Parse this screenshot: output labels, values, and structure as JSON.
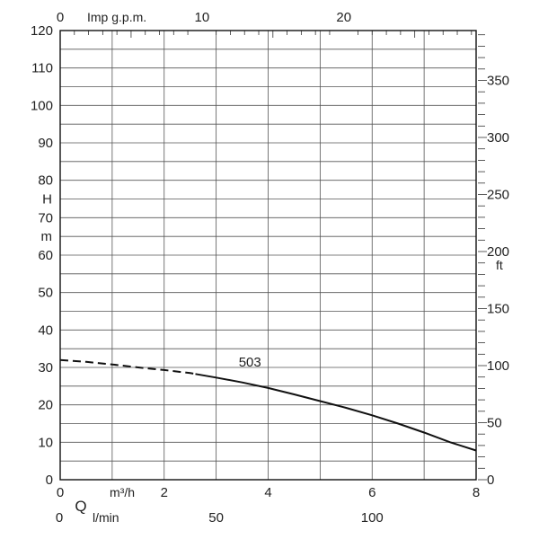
{
  "chart_data": {
    "type": "line",
    "title": "",
    "x_axis": {
      "unit_label": "m³/h",
      "q_symbol": "Q",
      "range": [
        0,
        8
      ],
      "ticks": [
        0,
        2,
        4,
        6,
        8
      ]
    },
    "x_axis_lpm": {
      "unit_label": "l/min",
      "tick_labels": [
        "0",
        "50",
        "100"
      ],
      "tick_values_m3h": [
        0,
        3,
        6
      ]
    },
    "x_axis_top": {
      "unit_label": "Imp g.p.m.",
      "tick_labels": [
        "0",
        "10",
        "20"
      ],
      "tick_values_m3h": [
        0,
        2.7277,
        5.4553
      ]
    },
    "y_axis": {
      "label_lines": [
        "H",
        "m"
      ],
      "range": [
        0,
        120
      ],
      "ticks": [
        0,
        10,
        20,
        30,
        40,
        50,
        60,
        70,
        80,
        90,
        100,
        110,
        120
      ]
    },
    "y_axis_right": {
      "unit_label": "ft",
      "tick_labels": [
        "0",
        "50",
        "100",
        "150",
        "200",
        "250",
        "300",
        "350"
      ],
      "tick_values_m": [
        0,
        15.24,
        30.48,
        45.72,
        60.96,
        76.2,
        91.44,
        106.68
      ]
    },
    "grid": true,
    "series": [
      {
        "name": "503",
        "dashed_until_x": 2.6,
        "x": [
          0,
          0.5,
          1,
          1.5,
          2,
          2.5,
          3,
          3.5,
          4,
          4.5,
          5,
          5.5,
          6,
          6.5,
          7,
          7.5,
          8
        ],
        "y": [
          32,
          31.5,
          30.8,
          30,
          29.3,
          28.5,
          27.3,
          26,
          24.5,
          22.8,
          21,
          19.2,
          17.2,
          15,
          12.6,
          10,
          7.8
        ]
      }
    ]
  }
}
